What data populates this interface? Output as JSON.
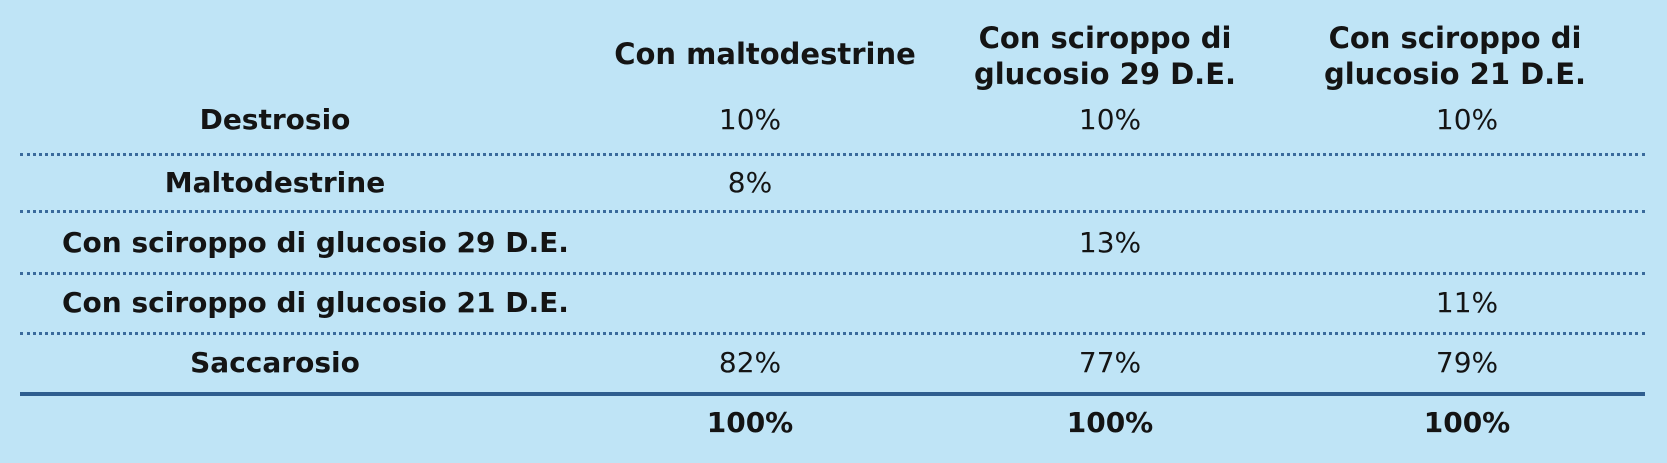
{
  "table": {
    "columns": [
      "Con maltodestrine",
      "Con sciroppo di\nglucosio 29 D.E.",
      "Con sciroppo di\nglucosio 21 D.E."
    ],
    "rows": [
      {
        "label": "Destrosio",
        "values": [
          "10%",
          "10%",
          "10%"
        ]
      },
      {
        "label": "Maltodestrine",
        "values": [
          "8%",
          "",
          ""
        ]
      },
      {
        "label": "Con sciroppo di glucosio 29 D.E.",
        "values": [
          "",
          "13%",
          ""
        ]
      },
      {
        "label": "Con sciroppo di glucosio 21 D.E.",
        "values": [
          "",
          "",
          "11%"
        ]
      },
      {
        "label": "Saccarosio",
        "values": [
          "82%",
          "77%",
          "79%"
        ]
      }
    ],
    "totals": [
      "100%",
      "100%",
      "100%"
    ]
  }
}
